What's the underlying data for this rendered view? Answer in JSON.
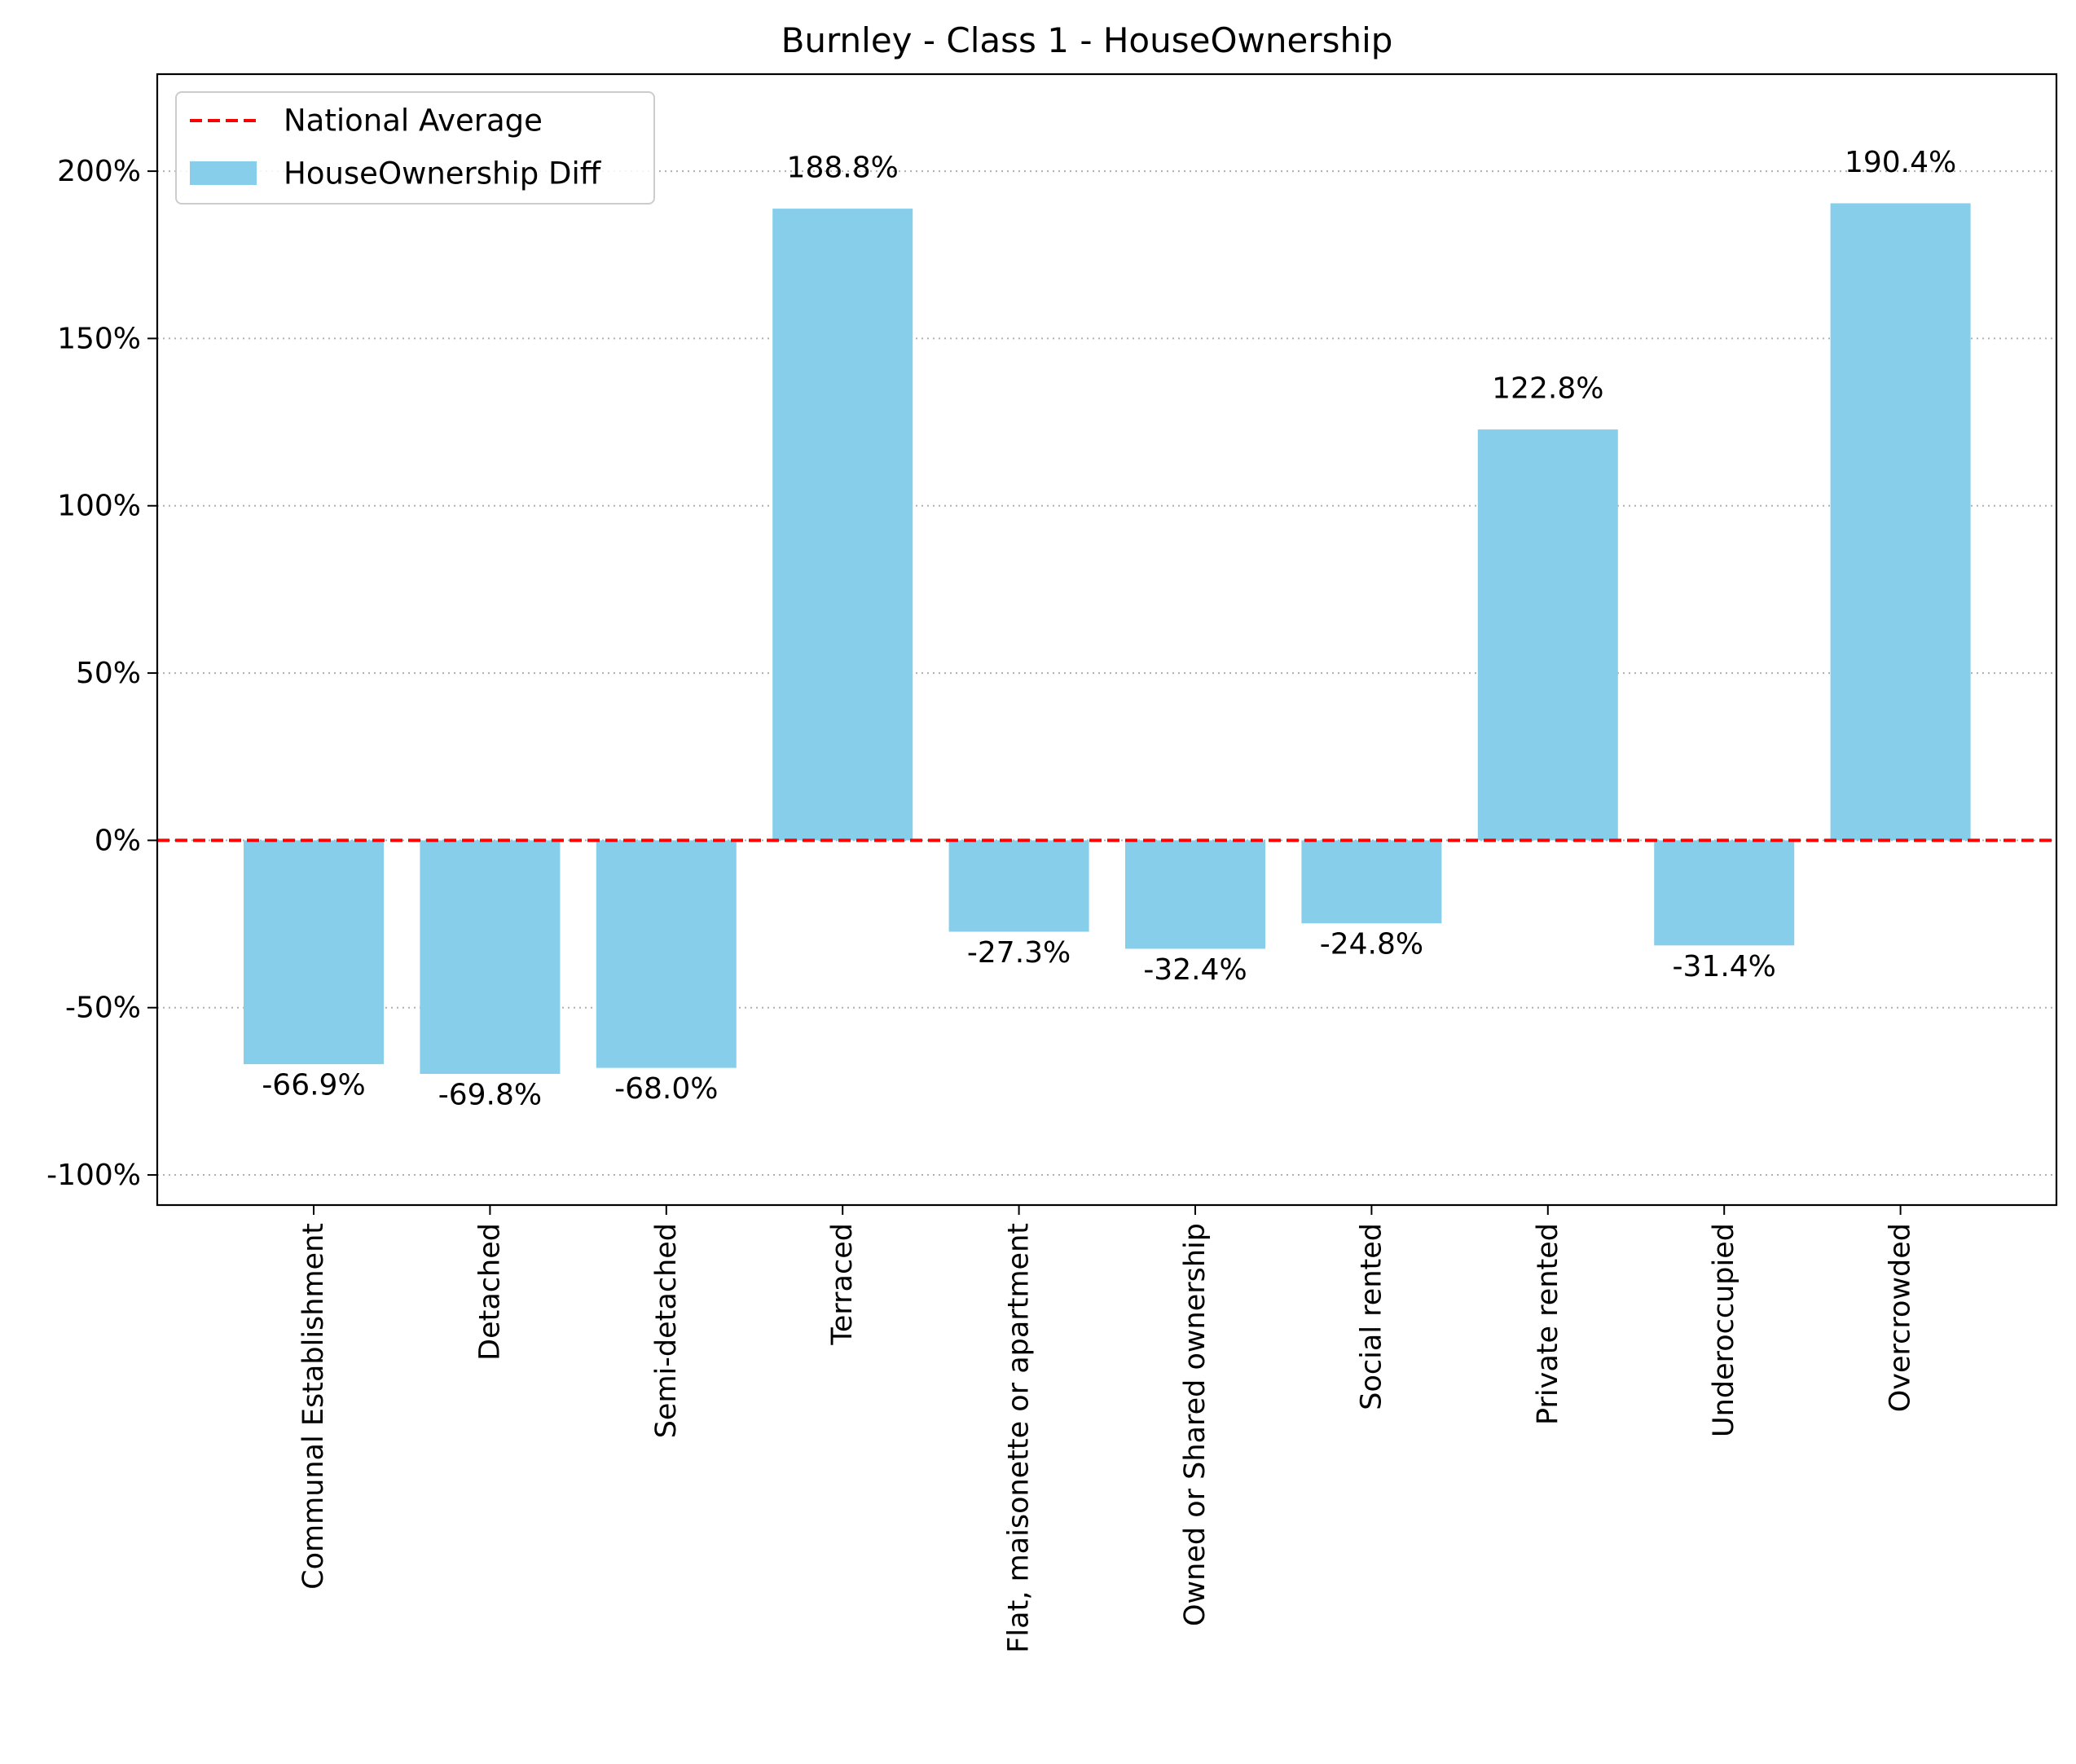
{
  "chart_data": {
    "type": "bar",
    "title": "Burnley - Class 1 - HouseOwnership",
    "xlabel": "",
    "ylabel": "",
    "categories": [
      "Communal Establishment",
      "Detached",
      "Semi-detached",
      "Terraced",
      "Flat, maisonette or apartment",
      "Owned or Shared ownership",
      "Social rented",
      "Private rented",
      "Underoccupied",
      "Overcrowded"
    ],
    "series": [
      {
        "name": "HouseOwnership Diff",
        "values": [
          -66.9,
          -69.8,
          -68.0,
          188.8,
          -27.3,
          -32.4,
          -24.8,
          122.8,
          -31.4,
          190.4
        ],
        "color": "#87ceeb"
      }
    ],
    "data_labels": [
      "-66.9%",
      "-69.8%",
      "-68.0%",
      "188.8%",
      "-27.3%",
      "-32.4%",
      "-24.8%",
      "122.8%",
      "-31.4%",
      "190.4%"
    ],
    "reference_line": {
      "name": "National Average",
      "value": 0,
      "color": "#ff0000",
      "style": "dashed"
    },
    "yticks": [
      -100,
      -50,
      0,
      50,
      100,
      150,
      200
    ],
    "ytick_labels": [
      "-100%",
      "-50%",
      "0%",
      "50%",
      "100%",
      "150%",
      "200%"
    ],
    "ylim": [
      -109,
      229
    ],
    "grid": "horizontal dotted",
    "legend": {
      "position": "top-left",
      "entries": [
        "National Average",
        "HouseOwnership Diff"
      ]
    }
  }
}
